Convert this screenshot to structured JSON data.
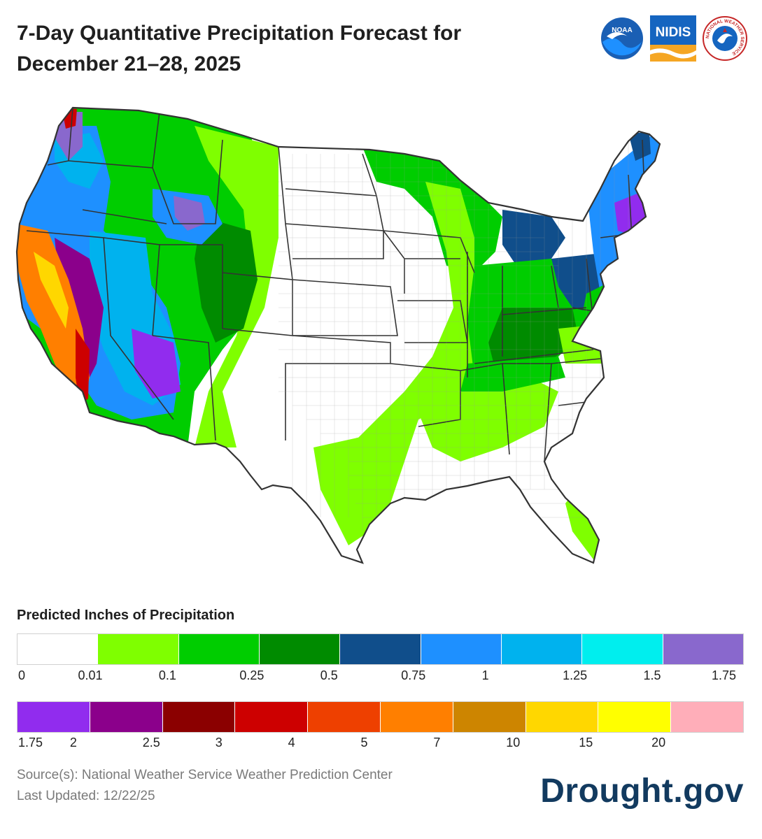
{
  "header": {
    "title_line1": "7-Day Quantitative Precipitation Forecast for",
    "title_line2": "December 21–28, 2025"
  },
  "logos": {
    "noaa": "NOAA",
    "nidis": "NIDIS",
    "nws": "NATIONAL WEATHER SERVICE"
  },
  "legend": {
    "title": "Predicted Inches of Precipitation",
    "row1": {
      "colors": [
        "#ffffff",
        "#7fff00",
        "#00cd00",
        "#008b00",
        "#104e8b",
        "#1e90ff",
        "#00b2ee",
        "#00eeee",
        "#8968cd"
      ],
      "ticks": [
        "0",
        "0.01",
        "0.1",
        "0.25",
        "0.5",
        "0.75",
        "1",
        "1.25",
        "1.5",
        "1.75"
      ]
    },
    "row2": {
      "colors": [
        "#912cee",
        "#8b008b",
        "#8b0000",
        "#cd0000",
        "#ee4000",
        "#ff7f00",
        "#cd8500",
        "#ffd700",
        "#ffff00",
        "#ffaeb9"
      ],
      "ticks": [
        "1.75",
        "2",
        "2.5",
        "3",
        "4",
        "5",
        "7",
        "10",
        "15",
        "20"
      ]
    }
  },
  "footer": {
    "source": "Source(s): National Weather Service Weather Prediction Center",
    "updated": "Last Updated: 12/22/25",
    "brand": "Drought.gov"
  },
  "map": {
    "colors": {
      "none": "#ffffff",
      "light_green": "#7fff00",
      "green": "#00cd00",
      "dark_green": "#008b00",
      "navy": "#104e8b",
      "blue": "#1e90ff",
      "sky": "#00b2ee",
      "cyan": "#00eeee",
      "lavender": "#8968cd",
      "violet": "#912cee",
      "purple": "#8b008b",
      "maroon": "#8b0000",
      "red": "#cd0000",
      "orange_red": "#ee4000",
      "orange": "#ff7f00",
      "gold_brown": "#cd8500",
      "gold": "#ffd700",
      "yellow": "#ffff00"
    }
  }
}
